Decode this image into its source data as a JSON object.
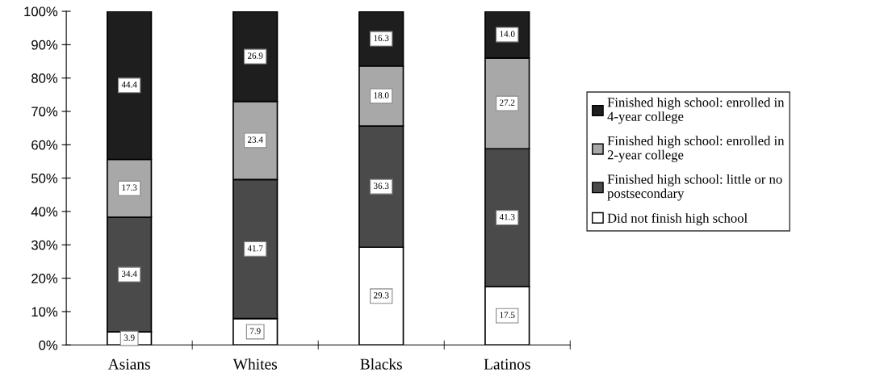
{
  "chart_data": {
    "type": "bar",
    "stacked": true,
    "categories": [
      "Asians",
      "Whites",
      "Blacks",
      "Latinos"
    ],
    "series": [
      {
        "name": "Did not finish high school",
        "color": "#ffffff",
        "values": [
          3.9,
          7.9,
          29.3,
          17.5
        ],
        "value_labels": [
          "3.9",
          "7.9",
          "29.3",
          "17.5"
        ]
      },
      {
        "name": "Finished high school: little or no postsecondary",
        "color": "#4a4a4a",
        "values": [
          34.4,
          41.7,
          36.3,
          41.3
        ],
        "value_labels": [
          "34.4",
          "41.7",
          "36.3",
          "41.3"
        ]
      },
      {
        "name": "Finished high school: enrolled in 2-year college",
        "color": "#a8a8a8",
        "values": [
          17.3,
          23.4,
          18.0,
          27.2
        ],
        "value_labels": [
          "17.3",
          "23.4",
          "18.0",
          "27.2"
        ]
      },
      {
        "name": "Finished high school: enrolled in 4-year college",
        "color": "#1e1e1e",
        "values": [
          44.4,
          26.9,
          16.3,
          14.0
        ],
        "value_labels": [
          "44.4",
          "26.9",
          "16.3",
          "14.0"
        ]
      }
    ],
    "ylim": [
      0,
      100
    ],
    "yticks": [
      {
        "value": 0,
        "label": "0%"
      },
      {
        "value": 10,
        "label": "10%"
      },
      {
        "value": 20,
        "label": "20%"
      },
      {
        "value": 30,
        "label": "30%"
      },
      {
        "value": 40,
        "label": "40%"
      },
      {
        "value": 50,
        "label": "50%"
      },
      {
        "value": 60,
        "label": "60%"
      },
      {
        "value": 70,
        "label": "70%"
      },
      {
        "value": 80,
        "label": "80%"
      },
      {
        "value": 90,
        "label": "90%"
      },
      {
        "value": 100,
        "label": "100%"
      }
    ],
    "grid": false,
    "legend": "right"
  }
}
